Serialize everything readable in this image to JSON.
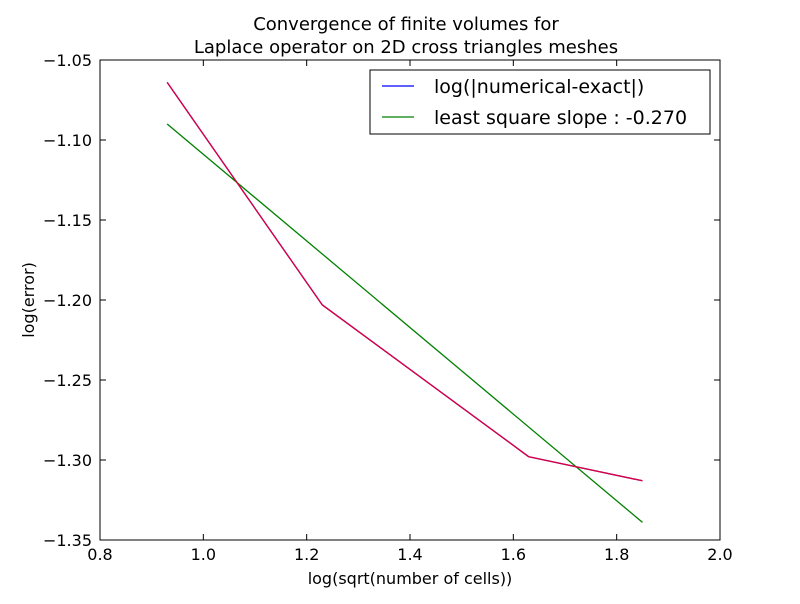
{
  "chart_data": {
    "type": "line",
    "title_lines": [
      "Convergence of finite volumes for",
      "Laplace operator on 2D cross triangles meshes"
    ],
    "xlabel": "log(sqrt(number of cells))",
    "ylabel": "log(error)",
    "xlim": [
      0.8,
      2.0
    ],
    "ylim": [
      -1.35,
      -1.05
    ],
    "xticks": [
      0.8,
      1.0,
      1.2,
      1.4,
      1.6,
      1.8,
      2.0
    ],
    "xtick_labels": [
      "0.8",
      "1.0",
      "1.2",
      "1.4",
      "1.6",
      "1.8",
      "2.0"
    ],
    "yticks": [
      -1.05,
      -1.1,
      -1.15,
      -1.2,
      -1.25,
      -1.3,
      -1.35
    ],
    "ytick_labels": [
      "−1.05",
      "−1.10",
      "−1.15",
      "−1.20",
      "−1.25",
      "−1.30",
      "−1.35"
    ],
    "grid": false,
    "legend_position": "top-right",
    "series": [
      {
        "name": "log(|numerical-exact|)",
        "color": "#0000ff",
        "x": [
          0.93,
          1.23,
          1.63,
          1.85
        ],
        "y": [
          -1.064,
          -1.203,
          -1.298,
          -1.313
        ]
      },
      {
        "name": "least square slope : -0.270",
        "color": "#008000",
        "x": [
          0.93,
          1.85
        ],
        "y": [
          -1.09,
          -1.339
        ]
      },
      {
        "name": "",
        "color": "#e0003a",
        "x": [
          0.93,
          1.23,
          1.63,
          1.85
        ],
        "y": [
          -1.064,
          -1.203,
          -1.298,
          -1.313
        ]
      }
    ]
  }
}
